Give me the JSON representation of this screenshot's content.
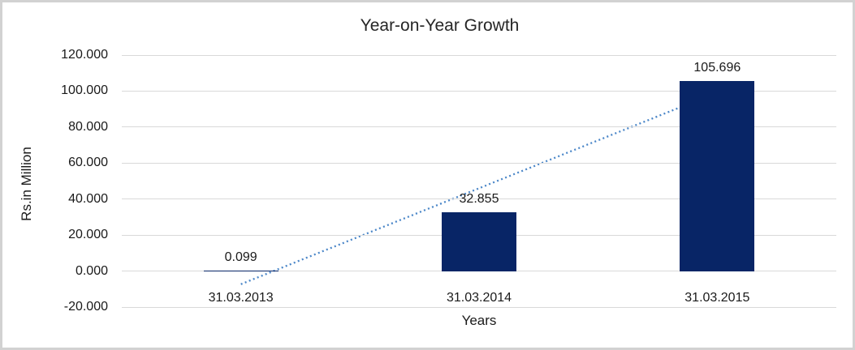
{
  "figure": {
    "background": "#ffffff",
    "frame_color": "#d2d2d2"
  },
  "chart_data": {
    "type": "bar",
    "title": "Year-on-Year Growth",
    "xlabel": "Years",
    "ylabel": "Rs.in Million",
    "categories": [
      "31.03.2013",
      "31.03.2014",
      "31.03.2015"
    ],
    "values": [
      0.099,
      32.855,
      105.696
    ],
    "data_labels": [
      "0.099",
      "32.855",
      "105.696"
    ],
    "ylim": [
      -20,
      120
    ],
    "ytick_step": 20,
    "yticks": [
      {
        "value": 120,
        "label": "120.000"
      },
      {
        "value": 100,
        "label": "100.000"
      },
      {
        "value": 80,
        "label": "80.000"
      },
      {
        "value": 60,
        "label": "60.000"
      },
      {
        "value": 40,
        "label": "40.000"
      },
      {
        "value": 20,
        "label": "20.000"
      },
      {
        "value": 0,
        "label": "0.000"
      },
      {
        "value": -20,
        "label": "-20.000"
      }
    ],
    "grid": true,
    "legend": "none",
    "bar_color": "#082566",
    "gridline_color": "#d9d9d9",
    "text_color": "#1a1a1a",
    "trendline": {
      "type": "linear",
      "style": "dotted",
      "color": "#4a86c8",
      "start_value": -7.3,
      "end_value": 99.3
    }
  }
}
